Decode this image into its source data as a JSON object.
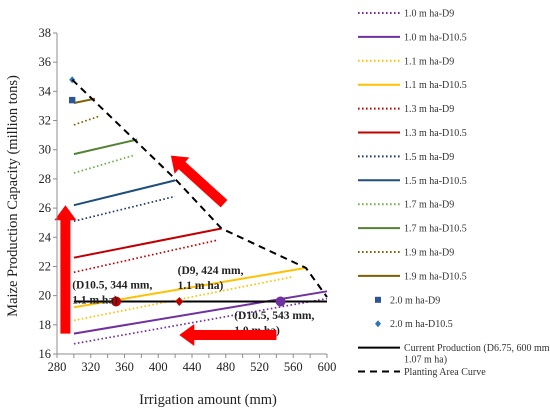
{
  "chart_data": {
    "type": "line",
    "xlabel": "Irrigation amount (mm)",
    "ylabel": "Maize Production Capacity (million tons)",
    "xlim": [
      280,
      600
    ],
    "ylim": [
      16,
      38
    ],
    "x_ticks": [
      280,
      300,
      320,
      340,
      360,
      380,
      400,
      420,
      440,
      460,
      480,
      500,
      520,
      540,
      560,
      580,
      600
    ],
    "y_ticks": [
      16,
      18,
      20,
      22,
      24,
      26,
      28,
      30,
      32,
      34,
      36,
      38
    ],
    "grid": false,
    "legend_position": "right",
    "series": [
      {
        "name": "1.0 m ha-D9",
        "color": "#7030a0",
        "dash": "dot",
        "x": [
          300,
          600
        ],
        "y": [
          16.7,
          19.8
        ]
      },
      {
        "name": "1.0 m ha-D10.5",
        "color": "#7030a0",
        "dash": "solid",
        "x": [
          300,
          600
        ],
        "y": [
          17.4,
          20.3
        ]
      },
      {
        "name": "1.1 m ha-D9",
        "color": "#ffc000",
        "dash": "dot",
        "x": [
          300,
          560
        ],
        "y": [
          18.3,
          21.3
        ]
      },
      {
        "name": "1.1 m ha-D10.5",
        "color": "#ffc000",
        "dash": "solid",
        "x": [
          300,
          575
        ],
        "y": [
          19.2,
          21.9
        ]
      },
      {
        "name": "1.3 m ha-D9",
        "color": "#c00000",
        "dash": "dot",
        "x": [
          300,
          470
        ],
        "y": [
          21.6,
          23.8
        ]
      },
      {
        "name": "1.3 m ha-D10.5",
        "color": "#c00000",
        "dash": "solid",
        "x": [
          300,
          475
        ],
        "y": [
          22.6,
          24.6
        ]
      },
      {
        "name": "1.5 m ha-D9",
        "color": "#1f3864",
        "dash": "dot",
        "x": [
          300,
          420
        ],
        "y": [
          25.1,
          26.8
        ]
      },
      {
        "name": "1.5 m ha-D10.5",
        "color": "#1f4e79",
        "dash": "solid",
        "x": [
          300,
          420
        ],
        "y": [
          26.2,
          27.9
        ]
      },
      {
        "name": "1.7 m ha-D9",
        "color": "#70ad47",
        "dash": "dot",
        "x": [
          300,
          370
        ],
        "y": [
          28.4,
          29.6
        ]
      },
      {
        "name": "1.7 m ha-D10.5",
        "color": "#548235",
        "dash": "solid",
        "x": [
          300,
          375
        ],
        "y": [
          29.7,
          30.7
        ]
      },
      {
        "name": "1.9 m ha-D9",
        "color": "#7f6000",
        "dash": "dot",
        "x": [
          300,
          330
        ],
        "y": [
          31.7,
          32.3
        ]
      },
      {
        "name": "1.9 m ha-D10.5",
        "color": "#7f6000",
        "dash": "solid",
        "x": [
          300,
          325
        ],
        "y": [
          33.2,
          33.5
        ]
      },
      {
        "name": "2.0 m ha-D9",
        "color": "#2e5597",
        "marker": "square",
        "x": [
          298
        ],
        "y": [
          33.4
        ]
      },
      {
        "name": "2.0 m ha-D10.5",
        "color": "#2e75b6",
        "marker": "diamond",
        "x": [
          298
        ],
        "y": [
          34.8
        ]
      },
      {
        "name": "Current Production (D6.75, 600 mm, 1.07 m ha)",
        "color": "#000000",
        "dash": "solid",
        "x": [
          300,
          600
        ],
        "y": [
          19.6,
          19.6
        ]
      },
      {
        "name": "Planting  Area Curve",
        "color": "#000000",
        "dash": "dash",
        "x": [
          298,
          420,
          475,
          575,
          600
        ],
        "y": [
          34.8,
          28.0,
          24.6,
          21.9,
          19.9
        ]
      }
    ],
    "points": [
      {
        "x": 350,
        "y": 19.6,
        "color": "#c00000",
        "shape": "circle"
      },
      {
        "x": 425,
        "y": 19.6,
        "color": "#c00000",
        "shape": "diamond"
      },
      {
        "x": 545,
        "y": 19.6,
        "color": "#7030a0",
        "shape": "circle"
      }
    ],
    "annotations": [
      {
        "lines": [
          "(D9, 424 mm,",
          "1.1 m ha)"
        ],
        "x": 423,
        "y": 21.5
      },
      {
        "lines": [
          "(D10.5, 344 mm,",
          "1.1 m ha)"
        ],
        "x": 298,
        "y": 20.5
      },
      {
        "lines": [
          "(D10.5, 543 mm,",
          "1.0 m ha)"
        ],
        "x": 490,
        "y": 18.4
      }
    ],
    "arrows": [
      {
        "from_x": 478,
        "from_y": 26.3,
        "to_x": 415,
        "to_y": 29.6,
        "color": "#ff0000"
      },
      {
        "from_x": 290,
        "from_y": 17.4,
        "to_x": 290,
        "to_y": 26.2,
        "color": "#ff0000"
      },
      {
        "from_x": 540,
        "from_y": 17.3,
        "to_x": 425,
        "to_y": 17.3,
        "color": "#ff0000"
      }
    ]
  }
}
